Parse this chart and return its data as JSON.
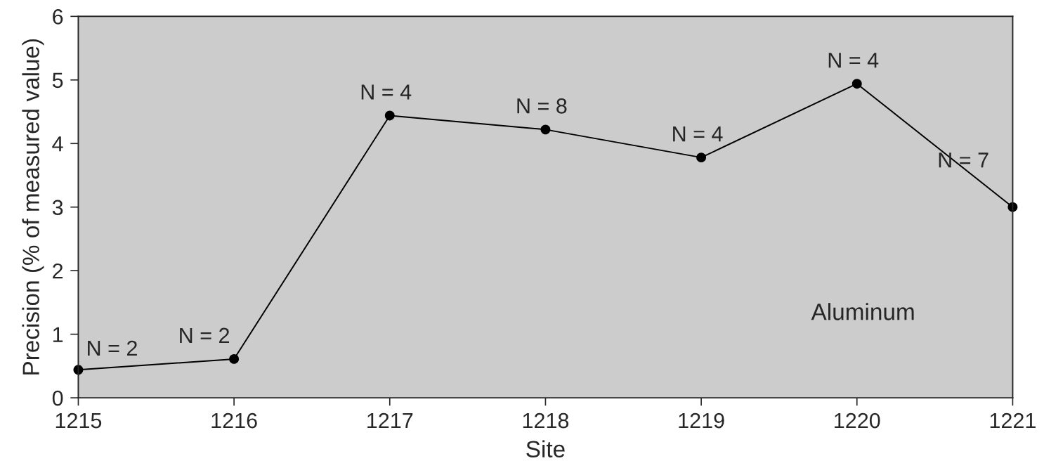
{
  "chart_data": {
    "type": "line",
    "xlabel": "Site",
    "ylabel": "Precision (% of measured value)",
    "x": [
      1215,
      1216,
      1217,
      1218,
      1219,
      1220,
      1221
    ],
    "series": [
      {
        "color": "#000000",
        "values": [
          0.44,
          0.61,
          4.44,
          4.22,
          3.78,
          4.94,
          3.0
        ]
      }
    ],
    "xlim": [
      1215,
      1221
    ],
    "xticks": [
      1215,
      1216,
      1217,
      1218,
      1219,
      1220,
      1221
    ],
    "ylim": [
      0,
      6
    ],
    "yticks": [
      0,
      1,
      2,
      3,
      4,
      5,
      6
    ],
    "marker": "circle",
    "line_style": "solid",
    "annotations": [
      {
        "text": "N = 2",
        "x": 1215,
        "y": 0.44
      },
      {
        "text": "N = 2",
        "x": 1216,
        "y": 0.61
      },
      {
        "text": "N = 4",
        "x": 1217,
        "y": 4.44
      },
      {
        "text": "N = 8",
        "x": 1218,
        "y": 4.22
      },
      {
        "text": "N = 4",
        "x": 1219,
        "y": 3.78
      },
      {
        "text": "N = 4",
        "x": 1220,
        "y": 4.94
      },
      {
        "text": "N = 7",
        "x": 1221,
        "y": 3.0
      },
      "Aluminum"
    ]
  }
}
